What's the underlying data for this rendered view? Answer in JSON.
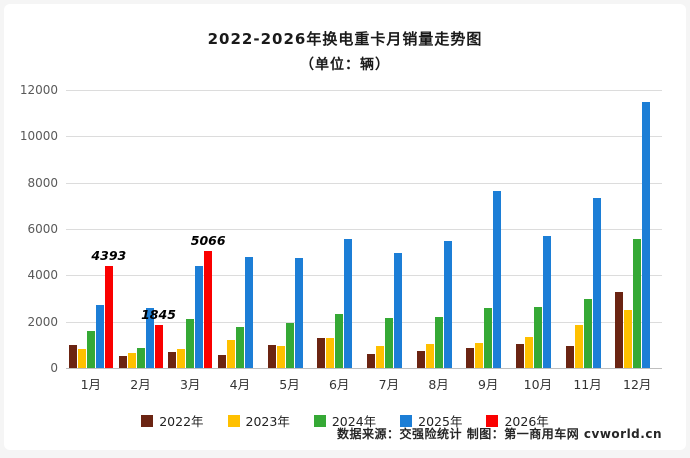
{
  "footer": "数据来源：交强险统计 制图：第一商用车网 cvworld.cn",
  "chart_data": {
    "type": "bar",
    "title": "2022-2026年换电重卡月销量走势图",
    "subtitle": "（单位：辆）",
    "categories": [
      "1月",
      "2月",
      "3月",
      "4月",
      "5月",
      "6月",
      "7月",
      "8月",
      "9月",
      "10月",
      "11月",
      "12月"
    ],
    "series": [
      {
        "name": "2022年",
        "color": "#6B2412",
        "values": [
          1000,
          500,
          700,
          550,
          1000,
          1300,
          600,
          750,
          850,
          1050,
          950,
          3300
        ]
      },
      {
        "name": "2023年",
        "color": "#FFC000",
        "values": [
          800,
          650,
          800,
          1200,
          950,
          1300,
          950,
          1050,
          1100,
          1350,
          1850,
          2500
        ]
      },
      {
        "name": "2024年",
        "color": "#35A935",
        "values": [
          1600,
          850,
          2100,
          1750,
          1950,
          2350,
          2150,
          2200,
          2600,
          2650,
          3000,
          5550
        ]
      },
      {
        "name": "2025年",
        "color": "#1C7ED6",
        "values": [
          2700,
          2600,
          4400,
          4800,
          4750,
          5550,
          4950,
          5500,
          7650,
          5700,
          7350,
          11500
        ]
      },
      {
        "name": "2026年",
        "color": "#FA0000",
        "values": [
          4393,
          1845,
          5066,
          null,
          null,
          null,
          null,
          null,
          null,
          null,
          null,
          null
        ]
      }
    ],
    "annotations": [
      {
        "series": "2026年",
        "category": "1月",
        "text": "4393"
      },
      {
        "series": "2026年",
        "category": "2月",
        "text": "1845"
      },
      {
        "series": "2026年",
        "category": "3月",
        "text": "5066"
      }
    ],
    "ylim": [
      0,
      12000
    ],
    "yticks": [
      0,
      2000,
      4000,
      6000,
      8000,
      10000,
      12000
    ],
    "grid": true,
    "legend_position": "bottom"
  }
}
